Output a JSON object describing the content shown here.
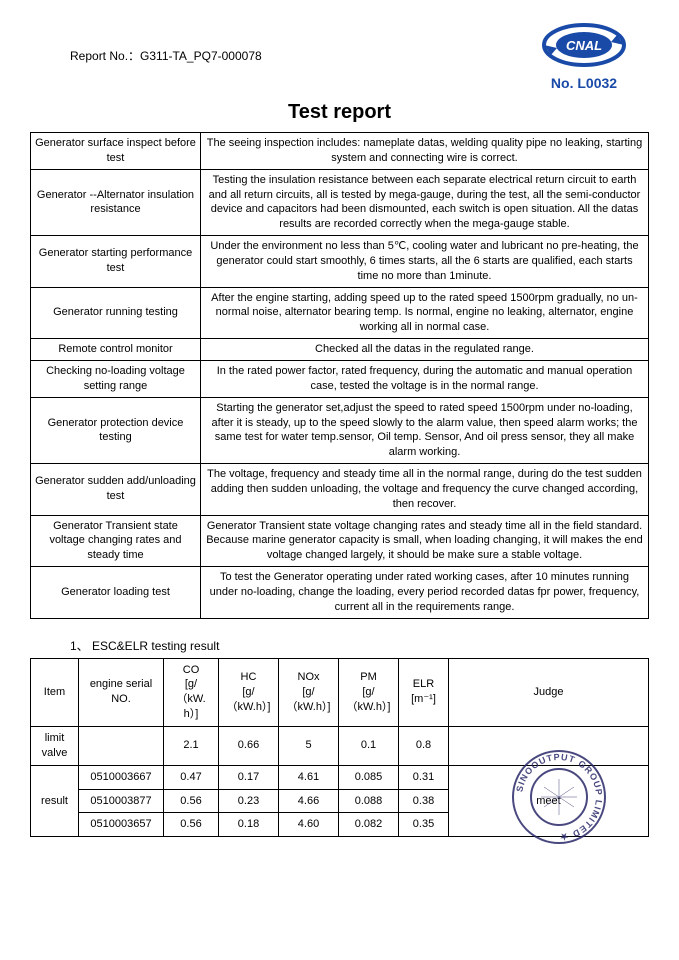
{
  "header": {
    "report_no_label": "Report No.：",
    "report_no_value": "G311-TA_PQ7-000078",
    "logo_text": "CNAL",
    "logo_number": "No. L0032",
    "logo_color": "#1a4aa8"
  },
  "title": "Test report",
  "main_table": [
    {
      "label": "Generator surface inspect before test",
      "desc": "The seeing inspection includes: nameplate datas, welding quality pipe no leaking, starting system and connecting wire is correct."
    },
    {
      "label": "Generator --Alternator insulation resistance",
      "desc": "Testing the insulation resistance between each separate electrical return circuit to earth and all return circuits, all is tested by mega-gauge, during the test, all the semi-conductor device and capacitors had been dismounted, each switch is open situation. All the datas results are recorded correctly when the mega-gauge stable."
    },
    {
      "label": "Generator starting performance test",
      "desc": "Under the environment no less than 5℃, cooling water and lubricant no pre-heating, the generator could start smoothly, 6 times starts, all the 6 starts are qualified, each starts time no more than 1minute."
    },
    {
      "label": "Generator running testing",
      "desc": "After the engine starting, adding speed up to the rated speed 1500rpm gradually, no un-normal noise, alternator bearing temp. Is normal, engine no leaking, alternator, engine working all in normal case."
    },
    {
      "label": "Remote control monitor",
      "desc": "Checked all the datas in the regulated range."
    },
    {
      "label": "Checking no-loading voltage setting range",
      "desc": "In the rated power factor, rated frequency, during the automatic and manual operation case, tested the voltage is in the normal range."
    },
    {
      "label": "Generator protection device testing",
      "desc": "Starting the generator set,adjust the speed to rated speed 1500rpm under no-loading, after it is steady, up to the speed slowly to the alarm value, then speed alarm works; the same test for water temp.sensor,   Oil temp. Sensor, And oil press sensor, they all make alarm working."
    },
    {
      "label": "Generator sudden add/unloading test",
      "desc": "The voltage, frequency and steady time all in the normal range, during do the test sudden adding then sudden unloading, the voltage and frequency the curve changed according, then recover."
    },
    {
      "label": "Generator Transient state voltage changing rates and steady time",
      "desc": "Generator Transient state voltage changing rates and steady time all in the field standard. Because marine generator capacity is small, when loading changing, it will makes the end voltage changed largely, it should be make sure a stable voltage."
    },
    {
      "label": "Generator loading test",
      "desc": "To test the Generator operating under rated working cases, after 10 minutes running under no-loading, change the loading, every period recorded datas fpr power, frequency, current all in the requirements range."
    }
  ],
  "section_label": "1、 ESC&ELR testing result",
  "result_table": {
    "headers": {
      "item": "Item",
      "serial": "engine serial NO.",
      "co": "CO\n[g/（kW.h）]",
      "hc": "HC\n[g/（kW.h）]",
      "nox": "NOx\n[g/（kW.h）]",
      "pm": "PM\n[g/（kW.h）]",
      "elr": "ELR\n[m⁻¹]",
      "judge": "Judge"
    },
    "limit_row": {
      "label": "limit valve",
      "serial": "",
      "co": "2.1",
      "hc": "0.66",
      "nox": "5",
      "pm": "0.1",
      "elr": "0.8",
      "judge": ""
    },
    "result_label": "result",
    "result_rows": [
      {
        "serial": "0510003667",
        "co": "0.47",
        "hc": "0.17",
        "nox": "4.61",
        "pm": "0.085",
        "elr": "0.31"
      },
      {
        "serial": "0510003877",
        "co": "0.56",
        "hc": "0.23",
        "nox": "4.66",
        "pm": "0.088",
        "elr": "0.38"
      },
      {
        "serial": "0510003657",
        "co": "0.56",
        "hc": "0.18",
        "nox": "4.60",
        "pm": "0.082",
        "elr": "0.35"
      }
    ],
    "judge": "meet"
  },
  "stamp": {
    "outer_text": "SINOOUTPUT GROUP LIMITED",
    "color": "#2a2a6a"
  }
}
